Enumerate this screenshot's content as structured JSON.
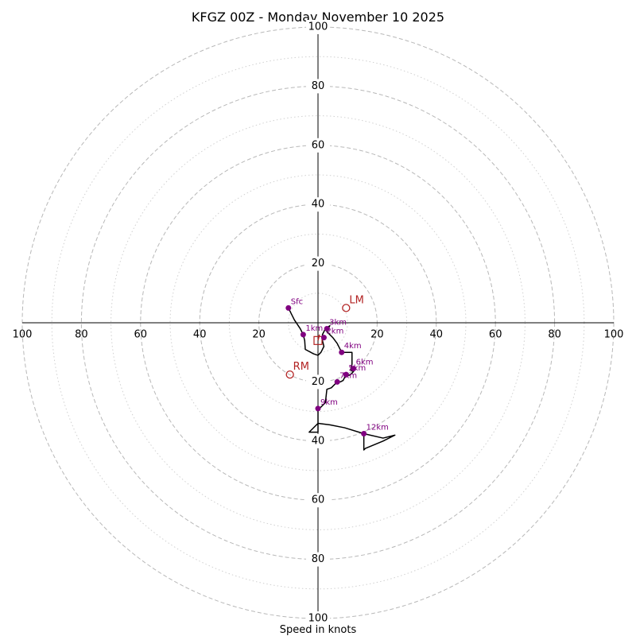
{
  "chart_data": {
    "type": "hodograph",
    "title": "KFGZ 00Z - Monday November 10 2025",
    "xlabel": "Speed in knots",
    "rmax": 100,
    "rings_major": [
      20,
      40,
      60,
      80,
      100
    ],
    "rings_minor": [
      10,
      30,
      50,
      70,
      90
    ],
    "tick_labels": {
      "top": [
        "20",
        "40",
        "60",
        "80",
        "100"
      ],
      "bottom": [
        "20",
        "40",
        "60",
        "80",
        "100"
      ],
      "left": [
        "20",
        "40",
        "60",
        "80",
        "100"
      ],
      "right": [
        "20",
        "40",
        "60",
        "80",
        "100"
      ]
    },
    "hodo_color": "#000000",
    "marker_color": "#800080",
    "motion_color": "#b22222",
    "trace": [
      [
        -10,
        5
      ],
      [
        -8,
        1
      ],
      [
        -6,
        -2
      ],
      [
        -5,
        -4
      ],
      [
        -4.5,
        -6
      ],
      [
        -4.3,
        -9
      ],
      [
        -1.5,
        -10.5
      ],
      [
        0,
        -11
      ],
      [
        1,
        -10
      ],
      [
        2,
        -8
      ],
      [
        1.5,
        -6
      ],
      [
        1.5,
        -4
      ],
      [
        2.5,
        -2
      ],
      [
        4,
        -1
      ],
      [
        3,
        -3
      ],
      [
        5,
        -5
      ],
      [
        6.5,
        -7
      ],
      [
        8,
        -10
      ],
      [
        9.5,
        -10
      ],
      [
        11.5,
        -10
      ],
      [
        11.5,
        -14
      ],
      [
        11,
        -16
      ],
      [
        12,
        -16.5
      ],
      [
        11,
        -17.5
      ],
      [
        9,
        -18.5
      ],
      [
        8.5,
        -19.5
      ],
      [
        7.5,
        -20
      ],
      [
        6.5,
        -20
      ],
      [
        4.5,
        -22
      ],
      [
        3,
        -22.5
      ],
      [
        2.5,
        -27
      ],
      [
        0.5,
        -29
      ],
      [
        0,
        -29.5
      ],
      [
        0,
        -34
      ],
      [
        -3,
        -37
      ],
      [
        0,
        -37
      ],
      [
        0,
        -34
      ],
      [
        4,
        -34.5
      ],
      [
        9,
        -35.5
      ],
      [
        15.5,
        -37.5
      ],
      [
        22,
        -39
      ],
      [
        26,
        -38
      ],
      [
        22,
        -40
      ],
      [
        16,
        -42.5
      ],
      [
        15.5,
        -43
      ],
      [
        15.5,
        -40
      ],
      [
        15.5,
        -37.5
      ]
    ],
    "height_markers": [
      {
        "label": "Sfc",
        "u": -10,
        "v": 5
      },
      {
        "label": "1km",
        "u": -5,
        "v": -4
      },
      {
        "label": "2km",
        "u": 2,
        "v": -5
      },
      {
        "label": "3km",
        "u": 3,
        "v": -2
      },
      {
        "label": "4km",
        "u": 8,
        "v": -10
      },
      {
        "label": "5km",
        "u": 9.5,
        "v": -17.5
      },
      {
        "label": "6km",
        "u": 12,
        "v": -15.5
      },
      {
        "label": "7km",
        "u": 6.5,
        "v": -20
      },
      {
        "label": "9km",
        "u": 0,
        "v": -29
      },
      {
        "label": "12km",
        "u": 15.5,
        "v": -37.5
      }
    ],
    "storm_motions": [
      {
        "label": "LM",
        "u": 9.5,
        "v": 5,
        "marker": "circle"
      },
      {
        "label": "RM",
        "u": -9.5,
        "v": -17.5,
        "marker": "circle"
      },
      {
        "label": "",
        "u": 0,
        "v": -6,
        "marker": "square"
      }
    ],
    "red_vector": {
      "u_from": 0,
      "v_from": -6,
      "u_to": 0.5,
      "v_to": -4
    }
  }
}
